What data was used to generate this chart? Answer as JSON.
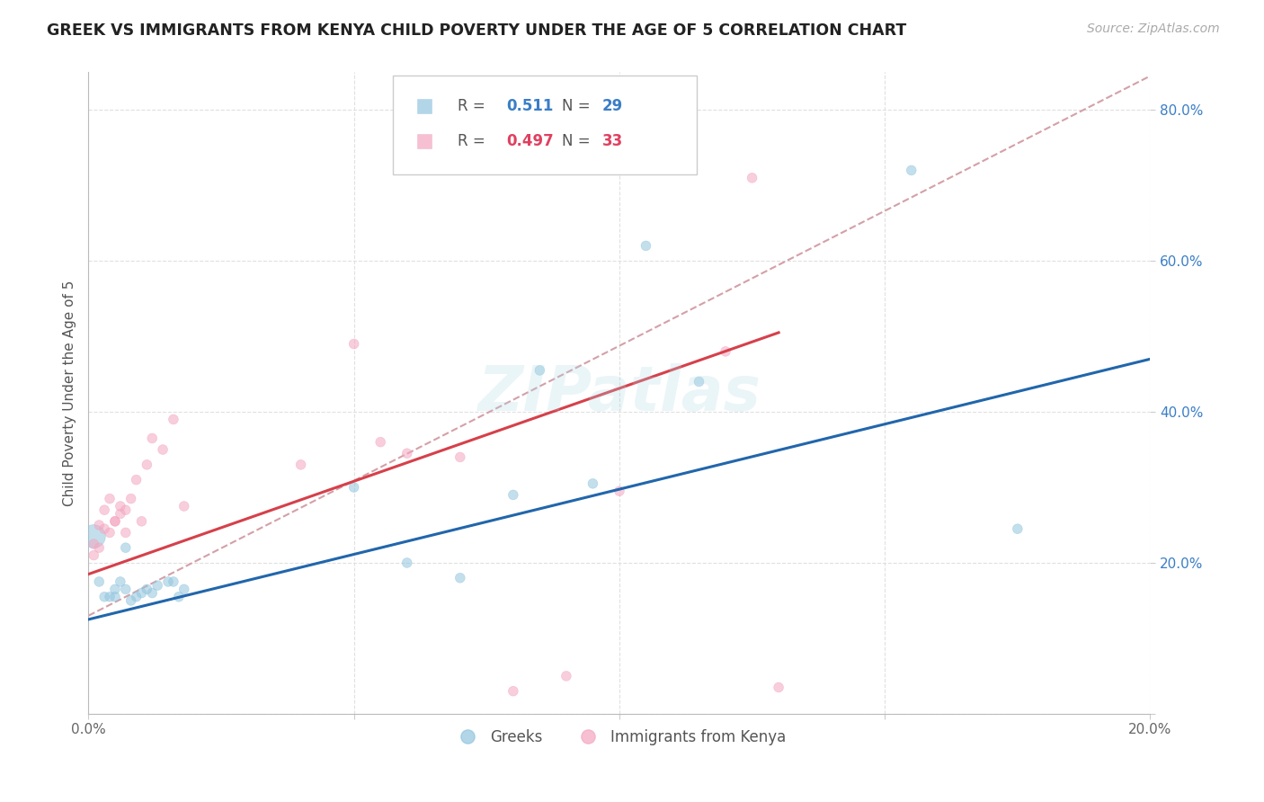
{
  "title": "GREEK VS IMMIGRANTS FROM KENYA CHILD POVERTY UNDER THE AGE OF 5 CORRELATION CHART",
  "source_text": "Source: ZipAtlas.com",
  "ylabel": "Child Poverty Under the Age of 5",
  "r_greek": 0.511,
  "n_greek": 29,
  "r_kenya": 0.497,
  "n_kenya": 33,
  "blue_color": "#92c5de",
  "pink_color": "#f4a6c0",
  "blue_line_color": "#2166ac",
  "pink_line_color": "#d6404a",
  "blue_label_color": "#3a7ec6",
  "pink_label_color": "#e04060",
  "ref_line_color": "#d4a0a8",
  "watermark": "ZIPatlas",
  "greek_x": [
    0.001,
    0.002,
    0.003,
    0.004,
    0.005,
    0.005,
    0.006,
    0.007,
    0.007,
    0.008,
    0.009,
    0.01,
    0.011,
    0.012,
    0.013,
    0.015,
    0.016,
    0.017,
    0.018,
    0.05,
    0.06,
    0.07,
    0.08,
    0.085,
    0.095,
    0.105,
    0.115,
    0.155,
    0.175
  ],
  "greek_y": [
    0.235,
    0.175,
    0.155,
    0.155,
    0.165,
    0.155,
    0.175,
    0.165,
    0.22,
    0.15,
    0.155,
    0.16,
    0.165,
    0.16,
    0.17,
    0.175,
    0.175,
    0.155,
    0.165,
    0.3,
    0.2,
    0.18,
    0.29,
    0.455,
    0.305,
    0.62,
    0.44,
    0.72,
    0.245
  ],
  "greek_sizes": [
    350,
    60,
    60,
    60,
    60,
    60,
    60,
    60,
    60,
    60,
    60,
    60,
    60,
    60,
    60,
    60,
    60,
    60,
    60,
    60,
    60,
    60,
    60,
    60,
    60,
    60,
    60,
    60,
    60
  ],
  "kenya_x": [
    0.001,
    0.001,
    0.002,
    0.002,
    0.003,
    0.003,
    0.004,
    0.004,
    0.005,
    0.005,
    0.006,
    0.006,
    0.007,
    0.007,
    0.008,
    0.009,
    0.01,
    0.011,
    0.012,
    0.014,
    0.016,
    0.018,
    0.04,
    0.05,
    0.055,
    0.06,
    0.07,
    0.08,
    0.09,
    0.1,
    0.12,
    0.125,
    0.13
  ],
  "kenya_y": [
    0.21,
    0.225,
    0.22,
    0.25,
    0.245,
    0.27,
    0.285,
    0.24,
    0.255,
    0.255,
    0.265,
    0.275,
    0.27,
    0.24,
    0.285,
    0.31,
    0.255,
    0.33,
    0.365,
    0.35,
    0.39,
    0.275,
    0.33,
    0.49,
    0.36,
    0.345,
    0.34,
    0.03,
    0.05,
    0.295,
    0.48,
    0.71,
    0.035
  ],
  "kenya_sizes": [
    60,
    60,
    60,
    60,
    60,
    60,
    60,
    60,
    60,
    60,
    60,
    60,
    60,
    60,
    60,
    60,
    60,
    60,
    60,
    60,
    60,
    60,
    60,
    60,
    60,
    60,
    60,
    60,
    60,
    60,
    60,
    60,
    60
  ],
  "xmin": 0.0,
  "xmax": 0.2,
  "ymin": 0.0,
  "ymax": 0.85,
  "yticks": [
    0.0,
    0.2,
    0.4,
    0.6,
    0.8
  ],
  "xticks": [
    0.0,
    0.05,
    0.1,
    0.15,
    0.2
  ],
  "xtick_labels": [
    "0.0%",
    "",
    "",
    "",
    "20.0%"
  ],
  "ytick_labels": [
    "",
    "20.0%",
    "40.0%",
    "60.0%",
    "80.0%"
  ],
  "greek_line_x": [
    0.0,
    0.2
  ],
  "greek_line_y": [
    0.125,
    0.47
  ],
  "kenya_line_x": [
    0.0,
    0.13
  ],
  "kenya_line_y": [
    0.185,
    0.505
  ],
  "ref_line_x": [
    0.0,
    0.2
  ],
  "ref_line_y": [
    0.13,
    0.845
  ]
}
